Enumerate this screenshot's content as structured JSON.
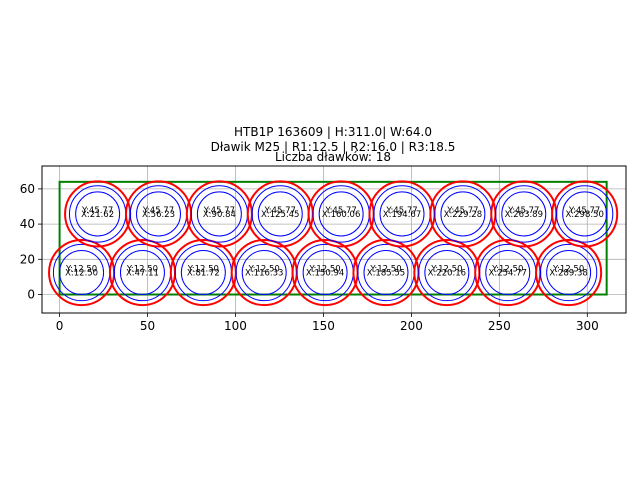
{
  "chart_data": {
    "type": "scatter",
    "title_lines": [
      "HTB1P 163609 | H:311.0| W:64.0",
      "Dławik M25 | R1:12.5 | R2:16.0 | R3:18.5",
      "Liczba dławków: 18"
    ],
    "xlim": [
      -10,
      322
    ],
    "ylim": [
      -10.5,
      73
    ],
    "xticks": [
      0,
      50,
      100,
      150,
      200,
      250,
      300
    ],
    "yticks": [
      0,
      20,
      40,
      60
    ],
    "grid": true,
    "box": {
      "x0": 0,
      "y0": 0,
      "x1": 311.0,
      "y1": 64.0,
      "color": "#008000"
    },
    "radii": {
      "r1": 12.5,
      "r2": 16.0,
      "r3": 18.5
    },
    "colors": {
      "inner": "#0000ff",
      "outer": "#ff0000",
      "box": "#008000",
      "grid": "#b0b0b0"
    },
    "circles": [
      {
        "x": 12.5,
        "y": 12.5,
        "x_label": "X:12.50",
        "y_label": "Y:12.50"
      },
      {
        "x": 47.11,
        "y": 12.5,
        "x_label": "X:47.11",
        "y_label": "Y:12.50"
      },
      {
        "x": 81.72,
        "y": 12.5,
        "x_label": "X:81.72",
        "y_label": "Y:12.50"
      },
      {
        "x": 116.33,
        "y": 12.5,
        "x_label": "X:116.33",
        "y_label": "Y:12.50"
      },
      {
        "x": 150.94,
        "y": 12.5,
        "x_label": "X:150.94",
        "y_label": "Y:12.50"
      },
      {
        "x": 185.55,
        "y": 12.5,
        "x_label": "X:185.55",
        "y_label": "Y:12.50"
      },
      {
        "x": 220.16,
        "y": 12.5,
        "x_label": "X:220.16",
        "y_label": "Y:12.50"
      },
      {
        "x": 254.77,
        "y": 12.5,
        "x_label": "X:254.77",
        "y_label": "Y:12.50"
      },
      {
        "x": 289.38,
        "y": 12.5,
        "x_label": "X:289.38",
        "y_label": "Y:12.50"
      },
      {
        "x": 21.62,
        "y": 45.77,
        "x_label": "X:21.62",
        "y_label": "Y:45.77"
      },
      {
        "x": 56.23,
        "y": 45.77,
        "x_label": "X:56.23",
        "y_label": "Y:45.77"
      },
      {
        "x": 90.84,
        "y": 45.77,
        "x_label": "X:90.84",
        "y_label": "Y:45.77"
      },
      {
        "x": 125.45,
        "y": 45.77,
        "x_label": "X:125.45",
        "y_label": "Y:45.77"
      },
      {
        "x": 160.06,
        "y": 45.77,
        "x_label": "X:160.06",
        "y_label": "Y:45.77"
      },
      {
        "x": 194.67,
        "y": 45.77,
        "x_label": "X:194.67",
        "y_label": "Y:45.77"
      },
      {
        "x": 229.28,
        "y": 45.77,
        "x_label": "X:229.28",
        "y_label": "Y:45.77"
      },
      {
        "x": 263.89,
        "y": 45.77,
        "x_label": "X:263.89",
        "y_label": "Y:45.77"
      },
      {
        "x": 298.5,
        "y": 45.77,
        "x_label": "X:298.50",
        "y_label": "Y:45.77"
      }
    ]
  }
}
